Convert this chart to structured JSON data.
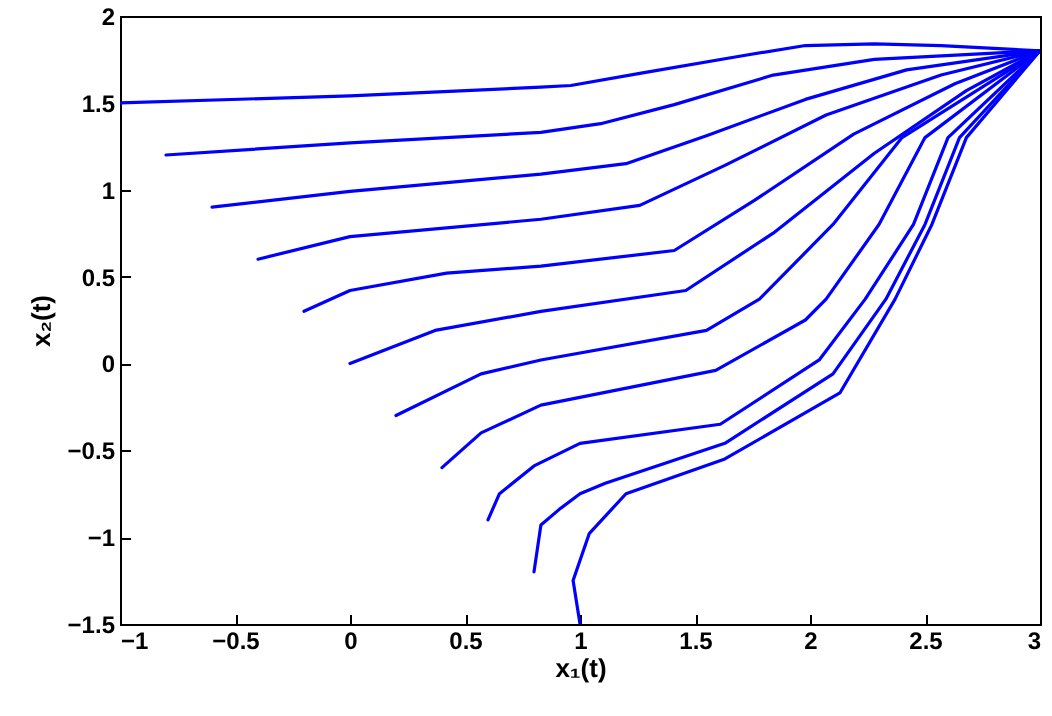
{
  "chart_data": {
    "type": "line",
    "xlabel": "x₁(t)",
    "ylabel": "x₂(t)",
    "xlim": [
      -1,
      3
    ],
    "ylim": [
      -1.5,
      2
    ],
    "xticks": [
      -1,
      -0.5,
      0,
      0.5,
      1,
      1.5,
      2,
      2.5,
      3
    ],
    "yticks": [
      -1.5,
      -1,
      -0.5,
      0,
      0.5,
      1,
      1.5,
      2
    ],
    "grid": false,
    "marker": "none",
    "line_style": "solid",
    "series": [
      {
        "color": "#0000ff",
        "x": [
          -1,
          0,
          0.83,
          0.96,
          1.26,
          1.7,
          1.98,
          2.28,
          2.57,
          3
        ],
        "values": [
          1.5,
          1.54,
          1.59,
          1.6,
          1.67,
          1.77,
          1.83,
          1.84,
          1.83,
          1.8
        ]
      },
      {
        "color": "#0000ff",
        "x": [
          -0.8,
          0,
          0.83,
          1.09,
          1.41,
          1.84,
          2.28,
          3
        ],
        "values": [
          1.2,
          1.27,
          1.33,
          1.38,
          1.49,
          1.66,
          1.75,
          1.8
        ]
      },
      {
        "color": "#0000ff",
        "x": [
          -0.6,
          0,
          0.83,
          1.2,
          1.55,
          1.98,
          2.42,
          3
        ],
        "values": [
          0.9,
          0.99,
          1.09,
          1.15,
          1.31,
          1.52,
          1.69,
          1.8
        ]
      },
      {
        "color": "#0000ff",
        "x": [
          -0.4,
          0,
          0.83,
          1.26,
          1.63,
          2.07,
          2.57,
          3
        ],
        "values": [
          0.6,
          0.73,
          0.83,
          0.91,
          1.14,
          1.43,
          1.66,
          1.8
        ]
      },
      {
        "color": "#0000ff",
        "x": [
          -0.2,
          0,
          0.42,
          0.83,
          1.41,
          1.76,
          2.19,
          2.63,
          3
        ],
        "values": [
          0.3,
          0.42,
          0.52,
          0.56,
          0.65,
          0.94,
          1.32,
          1.61,
          1.8
        ]
      },
      {
        "color": "#0000ff",
        "x": [
          0,
          0.37,
          0.83,
          1.46,
          1.84,
          2.28,
          2.68,
          3
        ],
        "values": [
          0,
          0.19,
          0.3,
          0.42,
          0.75,
          1.21,
          1.57,
          1.8
        ]
      },
      {
        "color": "#0000ff",
        "x": [
          0.2,
          0.57,
          0.83,
          1.55,
          1.78,
          2.1,
          2.4,
          3
        ],
        "values": [
          -0.3,
          -0.06,
          0.02,
          0.19,
          0.37,
          0.8,
          1.3,
          1.8
        ]
      },
      {
        "color": "#0000ff",
        "x": [
          0.4,
          0.57,
          0.83,
          1.59,
          1.98,
          2.07,
          2.3,
          2.5,
          3
        ],
        "values": [
          -0.6,
          -0.4,
          -0.24,
          -0.04,
          0.25,
          0.37,
          0.8,
          1.3,
          1.8
        ]
      },
      {
        "color": "#0000ff",
        "x": [
          0.6,
          0.65,
          0.8,
          1,
          1.61,
          2.04,
          2.24,
          2.45,
          2.6,
          3
        ],
        "values": [
          -0.9,
          -0.75,
          -0.59,
          -0.46,
          -0.35,
          0.02,
          0.37,
          0.8,
          1.3,
          1.8
        ]
      },
      {
        "color": "#0000ff",
        "x": [
          0.8,
          0.83,
          0.91,
          1,
          1.11,
          1.63,
          2.1,
          2.33,
          2.5,
          2.65,
          3
        ],
        "values": [
          -1.2,
          -0.93,
          -0.84,
          -0.75,
          -0.69,
          -0.46,
          -0.06,
          0.37,
          0.8,
          1.3,
          1.8
        ]
      },
      {
        "color": "#0000ff",
        "x": [
          1,
          0.97,
          1.04,
          1.2,
          1.63,
          2.13,
          2.37,
          2.53,
          2.68,
          3
        ],
        "values": [
          -1.5,
          -1.25,
          -0.98,
          -0.75,
          -0.55,
          -0.17,
          0.37,
          0.8,
          1.3,
          1.8
        ]
      }
    ]
  }
}
